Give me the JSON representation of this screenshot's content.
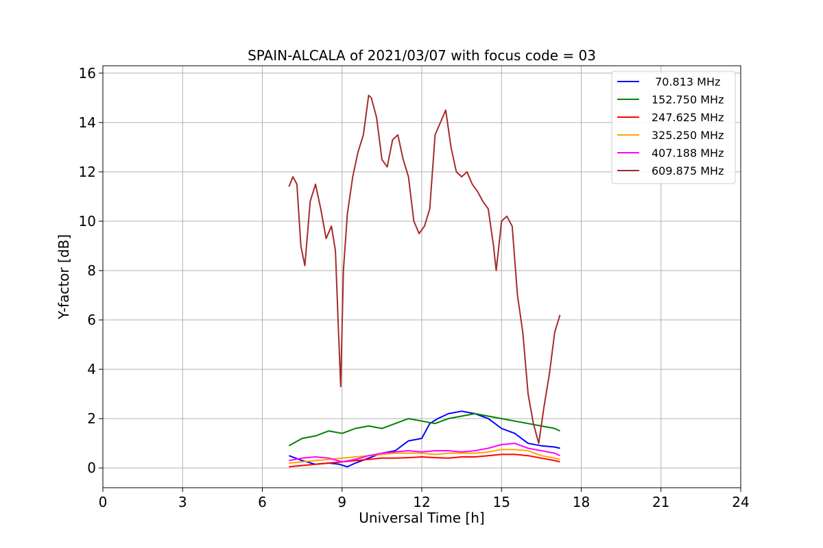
{
  "chart_data": {
    "type": "line",
    "title": "SPAIN-ALCALA of 2021/03/07 with focus code = 03",
    "xlabel": "Universal Time [h]",
    "ylabel": "Y-factor [dB]",
    "xlim": [
      0,
      24
    ],
    "ylim": [
      -0.8,
      16.3
    ],
    "xticks": [
      0,
      3,
      6,
      9,
      12,
      15,
      18,
      21,
      24
    ],
    "yticks": [
      0,
      2,
      4,
      6,
      8,
      10,
      12,
      14,
      16
    ],
    "grid": true,
    "legend_position": "top-right",
    "series": [
      {
        "name": " 70.813 MHz",
        "color": "#0000ff",
        "x": [
          7.0,
          7.5,
          8.0,
          8.5,
          8.9,
          9.2,
          9.5,
          10.0,
          10.5,
          11.0,
          11.5,
          12.0,
          12.3,
          12.6,
          13.0,
          13.5,
          14.0,
          14.5,
          15.0,
          15.5,
          16.0,
          16.5,
          17.0,
          17.2
        ],
        "values": [
          0.5,
          0.3,
          0.15,
          0.2,
          0.15,
          0.05,
          0.2,
          0.4,
          0.6,
          0.7,
          1.1,
          1.2,
          1.8,
          2.0,
          2.2,
          2.3,
          2.2,
          2.0,
          1.6,
          1.4,
          1.0,
          0.9,
          0.85,
          0.8
        ]
      },
      {
        "name": "152.750 MHz",
        "color": "#008000",
        "x": [
          7.0,
          7.5,
          8.0,
          8.5,
          9.0,
          9.5,
          10.0,
          10.5,
          11.0,
          11.5,
          12.0,
          12.5,
          13.0,
          13.5,
          14.0,
          14.5,
          15.0,
          15.5,
          16.0,
          16.5,
          17.0,
          17.2
        ],
        "values": [
          0.9,
          1.2,
          1.3,
          1.5,
          1.4,
          1.6,
          1.7,
          1.6,
          1.8,
          2.0,
          1.9,
          1.8,
          2.0,
          2.1,
          2.2,
          2.1,
          2.0,
          1.9,
          1.8,
          1.7,
          1.6,
          1.5
        ]
      },
      {
        "name": "247.625 MHz",
        "color": "#ff0000",
        "x": [
          7.0,
          7.5,
          8.0,
          8.5,
          9.0,
          9.5,
          10.0,
          10.5,
          11.0,
          11.5,
          12.0,
          12.5,
          13.0,
          13.5,
          14.0,
          14.5,
          15.0,
          15.5,
          16.0,
          16.5,
          17.0,
          17.2
        ],
        "values": [
          0.05,
          0.1,
          0.15,
          0.2,
          0.25,
          0.3,
          0.35,
          0.4,
          0.4,
          0.42,
          0.45,
          0.42,
          0.4,
          0.45,
          0.45,
          0.5,
          0.55,
          0.55,
          0.5,
          0.4,
          0.3,
          0.25
        ]
      },
      {
        "name": "325.250 MHz",
        "color": "#ffa500",
        "x": [
          7.0,
          7.5,
          8.0,
          8.5,
          9.0,
          9.5,
          10.0,
          10.5,
          11.0,
          11.5,
          12.0,
          12.5,
          13.0,
          13.5,
          14.0,
          14.5,
          15.0,
          15.5,
          16.0,
          16.5,
          17.0,
          17.2
        ],
        "values": [
          0.2,
          0.25,
          0.3,
          0.35,
          0.4,
          0.45,
          0.5,
          0.55,
          0.6,
          0.6,
          0.6,
          0.55,
          0.6,
          0.6,
          0.6,
          0.65,
          0.75,
          0.75,
          0.7,
          0.5,
          0.4,
          0.35
        ]
      },
      {
        "name": "407.188 MHz",
        "color": "#ff00ff",
        "x": [
          7.0,
          7.5,
          8.0,
          8.5,
          9.0,
          9.5,
          10.0,
          10.5,
          11.0,
          11.5,
          12.0,
          12.5,
          13.0,
          13.5,
          14.0,
          14.5,
          15.0,
          15.5,
          16.0,
          16.5,
          17.0,
          17.2
        ],
        "values": [
          0.3,
          0.4,
          0.45,
          0.4,
          0.25,
          0.35,
          0.5,
          0.6,
          0.65,
          0.7,
          0.65,
          0.7,
          0.7,
          0.65,
          0.7,
          0.8,
          0.95,
          1.0,
          0.8,
          0.7,
          0.6,
          0.5
        ]
      },
      {
        "name": "609.875 MHz",
        "color": "#a52a2a",
        "x": [
          7.0,
          7.15,
          7.3,
          7.45,
          7.6,
          7.8,
          8.0,
          8.2,
          8.4,
          8.6,
          8.75,
          8.85,
          8.95,
          9.05,
          9.2,
          9.4,
          9.6,
          9.8,
          10.0,
          10.1,
          10.3,
          10.5,
          10.7,
          10.9,
          11.1,
          11.3,
          11.5,
          11.7,
          11.9,
          12.1,
          12.3,
          12.5,
          12.7,
          12.9,
          13.1,
          13.3,
          13.5,
          13.7,
          13.9,
          14.1,
          14.3,
          14.5,
          14.7,
          14.8,
          15.0,
          15.2,
          15.4,
          15.6,
          15.8,
          16.0,
          16.2,
          16.4,
          16.6,
          16.8,
          17.0,
          17.2
        ],
        "values": [
          11.4,
          11.8,
          11.5,
          9.0,
          8.2,
          10.8,
          11.5,
          10.5,
          9.3,
          9.8,
          8.8,
          6.0,
          3.3,
          8.0,
          10.3,
          11.8,
          12.8,
          13.5,
          15.1,
          15.0,
          14.2,
          12.5,
          12.2,
          13.3,
          13.5,
          12.5,
          11.8,
          10.0,
          9.5,
          9.8,
          10.5,
          13.5,
          14.0,
          14.5,
          13.0,
          12.0,
          11.8,
          12.0,
          11.5,
          11.2,
          10.8,
          10.5,
          9.0,
          8.0,
          10.0,
          10.2,
          9.8,
          7.0,
          5.5,
          3.0,
          1.8,
          1.0,
          2.5,
          3.8,
          5.5,
          6.2
        ]
      }
    ]
  }
}
